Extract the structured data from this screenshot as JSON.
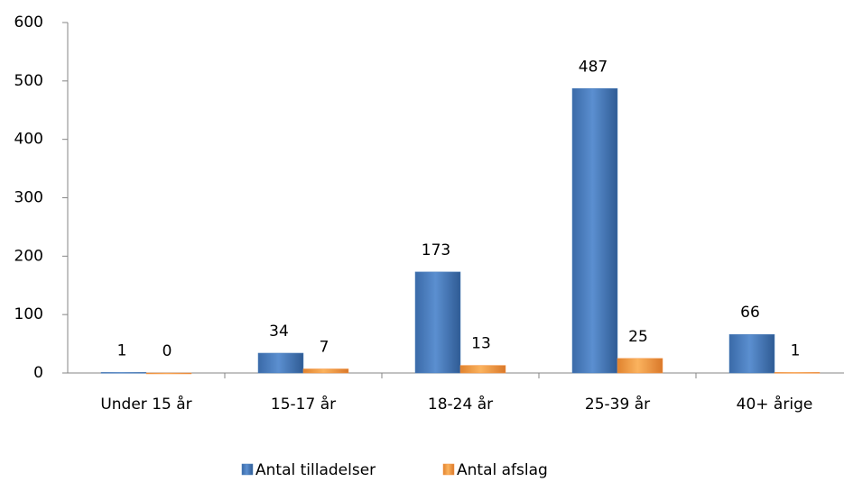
{
  "chart_data": {
    "type": "bar",
    "categories": [
      "Under 15 år",
      "15-17 år",
      "18-24 år",
      "25-39 år",
      "40+ årige"
    ],
    "series": [
      {
        "name": "Antal tilladelser",
        "color": "#4f81bd",
        "values": [
          1,
          34,
          173,
          487,
          66
        ]
      },
      {
        "name": "Antal afslag",
        "color": "#f79646",
        "values": [
          0,
          7,
          13,
          25,
          1
        ]
      }
    ],
    "ylim": [
      0,
      600
    ],
    "yticks": [
      0,
      100,
      200,
      300,
      400,
      500,
      600
    ],
    "grid": false
  }
}
